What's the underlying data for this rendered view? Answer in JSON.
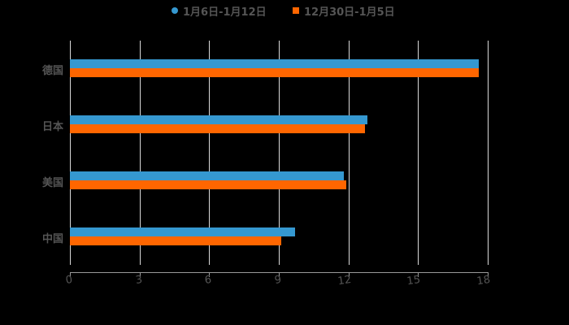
{
  "colors": {
    "series1": "#3598d0",
    "series2": "#ff6600",
    "background": "#000000",
    "text": "#555555",
    "grid": "#d9d9d9"
  },
  "legend": [
    {
      "label": "1月6日-1月12日",
      "marker": "circle",
      "color": "#3598d0"
    },
    {
      "label": "12月30日-1月5日",
      "marker": "square",
      "color": "#ff6600"
    }
  ],
  "x_ticks": [
    "0",
    "3",
    "6",
    "9",
    "12",
    "15",
    "18"
  ],
  "categories": [
    "德国",
    "日本",
    "美国",
    "中国"
  ],
  "chart_data": {
    "type": "bar",
    "orientation": "horizontal",
    "title": "",
    "xlabel": "",
    "ylabel": "",
    "categories": [
      "德国",
      "日本",
      "美国",
      "中国"
    ],
    "series": [
      {
        "name": "1月6日-1月12日",
        "values": [
          17.6,
          12.8,
          11.8,
          9.7
        ]
      },
      {
        "name": "12月30日-1月5日",
        "values": [
          17.6,
          12.7,
          11.9,
          9.1
        ]
      }
    ],
    "xlim": [
      0,
      18
    ],
    "x_ticks": [
      0,
      3,
      6,
      9,
      12,
      15,
      18
    ],
    "grid": true,
    "legend_position": "top"
  }
}
